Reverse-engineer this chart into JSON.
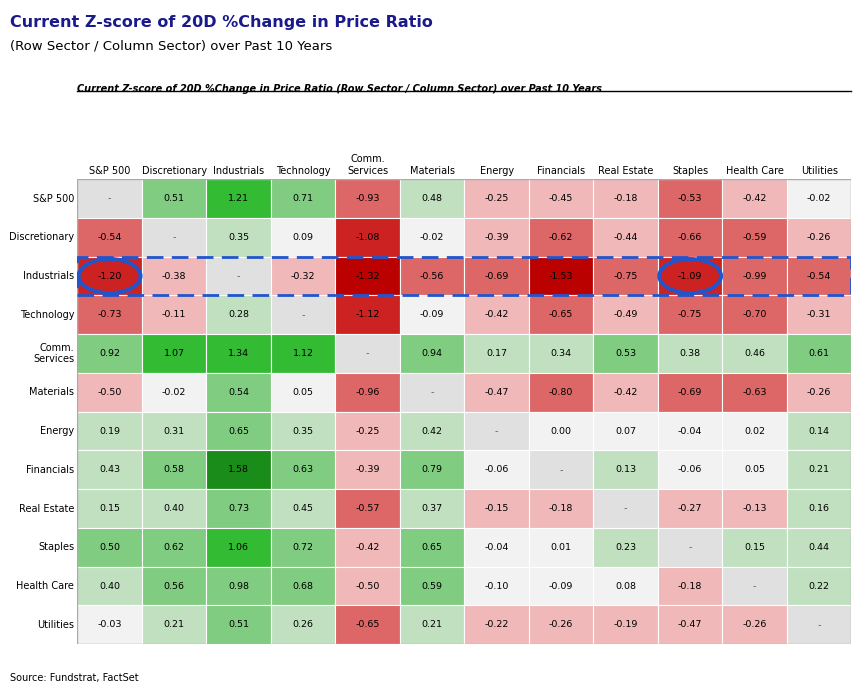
{
  "title_main": "Current Z-score of 20D %Change in Price Ratio",
  "title_sub": "(Row Sector / Column Sector) over Past 10 Years",
  "title_italic": "Current Z-score of 20D %Change in Price Ratio (Row Sector / Column Sector) over Past 10 Years",
  "source": "Source: Fundstrat, FactSet",
  "row_labels": [
    "S&P 500",
    "Discretionary",
    "Industrials",
    "Technology",
    "Comm.\nServices",
    "Materials",
    "Energy",
    "Financials",
    "Real Estate",
    "Staples",
    "Health Care",
    "Utilities"
  ],
  "col_labels": [
    "S&P 500",
    "Discretionary",
    "Industrials",
    "Technology",
    "Comm.\nServices",
    "Materials",
    "Energy",
    "Financials",
    "Real Estate",
    "Staples",
    "Health Care",
    "Utilities"
  ],
  "data": [
    [
      null,
      0.51,
      1.21,
      0.71,
      -0.93,
      0.48,
      -0.25,
      -0.45,
      -0.18,
      -0.53,
      -0.42,
      -0.02
    ],
    [
      -0.54,
      null,
      0.35,
      0.09,
      -1.08,
      -0.02,
      -0.39,
      -0.62,
      -0.44,
      -0.66,
      -0.59,
      -0.26
    ],
    [
      -1.2,
      -0.38,
      null,
      -0.32,
      -1.32,
      -0.56,
      -0.69,
      -1.53,
      -0.75,
      -1.09,
      -0.99,
      -0.54
    ],
    [
      -0.73,
      -0.11,
      0.28,
      null,
      -1.12,
      -0.09,
      -0.42,
      -0.65,
      -0.49,
      -0.75,
      -0.7,
      -0.31
    ],
    [
      0.92,
      1.07,
      1.34,
      1.12,
      null,
      0.94,
      0.17,
      0.34,
      0.53,
      0.38,
      0.46,
      0.61
    ],
    [
      -0.5,
      -0.02,
      0.54,
      0.05,
      -0.96,
      null,
      -0.47,
      -0.8,
      -0.42,
      -0.69,
      -0.63,
      -0.26
    ],
    [
      0.19,
      0.31,
      0.65,
      0.35,
      -0.25,
      0.42,
      null,
      0.0,
      0.07,
      -0.04,
      0.02,
      0.14
    ],
    [
      0.43,
      0.58,
      1.58,
      0.63,
      -0.39,
      0.79,
      -0.06,
      null,
      0.13,
      -0.06,
      0.05,
      0.21
    ],
    [
      0.15,
      0.4,
      0.73,
      0.45,
      -0.57,
      0.37,
      -0.15,
      -0.18,
      null,
      -0.27,
      -0.13,
      0.16
    ],
    [
      0.5,
      0.62,
      1.06,
      0.72,
      -0.42,
      0.65,
      -0.04,
      0.01,
      0.23,
      null,
      0.15,
      0.44
    ],
    [
      0.4,
      0.56,
      0.98,
      0.68,
      -0.5,
      0.59,
      -0.1,
      -0.09,
      0.08,
      -0.18,
      null,
      0.22
    ],
    [
      -0.03,
      0.21,
      0.51,
      0.26,
      -0.65,
      0.21,
      -0.22,
      -0.26,
      -0.19,
      -0.47,
      -0.26,
      null
    ]
  ],
  "bg_color": "#ffffff",
  "circled_cells": [
    [
      2,
      0
    ],
    [
      2,
      9
    ]
  ],
  "dashed_row": 2,
  "color_thresholds": [
    [
      1.5,
      "#1a8c1a"
    ],
    [
      1.0,
      "#33bb33"
    ],
    [
      0.5,
      "#80cc80"
    ],
    [
      0.1,
      "#c0e0c0"
    ],
    [
      -0.1,
      "#f2f2f2"
    ],
    [
      -0.5,
      "#f0b8b8"
    ],
    [
      -1.0,
      "#dd6666"
    ],
    [
      -1.3,
      "#cc2222"
    ],
    [
      -99,
      "#bb0000"
    ]
  ],
  "diag_color": "#e0e0e0"
}
